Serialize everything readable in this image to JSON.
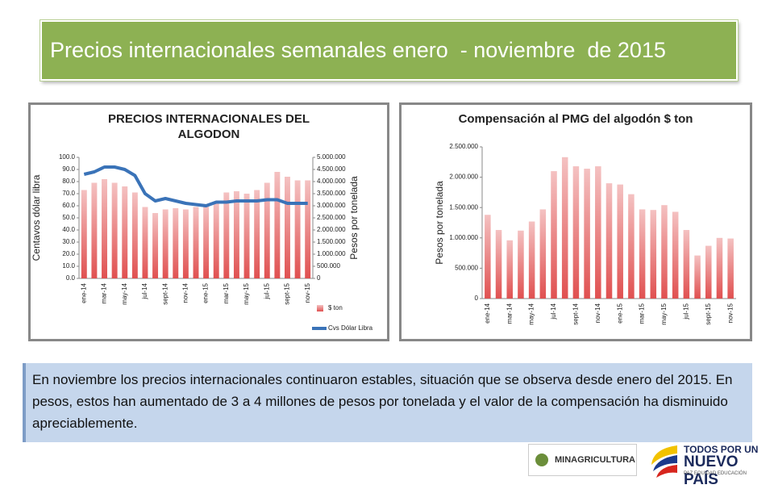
{
  "slide_title": "Precios internacionales semanales enero  - noviembre  de 2015",
  "chart_data": [
    {
      "type": "combo",
      "title": "PRECIOS INTERNACIONALES DEL ALGODON",
      "categories": [
        "ene-14",
        null,
        "mar-14",
        null,
        "may-14",
        null,
        "jul-14",
        null,
        "sept-14",
        null,
        "nov-14",
        null,
        "ene-15",
        null,
        "mar-15",
        null,
        "may-15",
        null,
        "jul-15",
        null,
        "sept-15",
        null,
        "nov-15"
      ],
      "y_label": "Centavos dólar libra",
      "y2_label": "Pesos por tonelada",
      "ylim": [
        0,
        100
      ],
      "yticks": [
        {
          "value": 0,
          "label": "0.0"
        },
        {
          "value": 10,
          "label": "10.0"
        },
        {
          "value": 20,
          "label": "20.0"
        },
        {
          "value": 30,
          "label": "30.0"
        },
        {
          "value": 40,
          "label": "40.0"
        },
        {
          "value": 50,
          "label": "50.0"
        },
        {
          "value": 60,
          "label": "60.0"
        },
        {
          "value": 70,
          "label": "70.0"
        },
        {
          "value": 80,
          "label": "80.0"
        },
        {
          "value": 90,
          "label": "90.0"
        },
        {
          "value": 100,
          "label": "100.0"
        }
      ],
      "y2lim": [
        0,
        5000000
      ],
      "y2ticks": [
        0,
        {
          "value": 500000,
          "label": "500.000"
        },
        {
          "value": 1000000,
          "label": "1.000.000"
        },
        {
          "value": 1500000,
          "label": "1.500.000"
        },
        {
          "value": 2000000,
          "label": "2.000.000"
        },
        {
          "value": 2500000,
          "label": "2.500.000"
        },
        {
          "value": 3000000,
          "label": "3.000.000"
        },
        {
          "value": 3500000,
          "label": "3.500.000"
        },
        {
          "value": 4000000,
          "label": "4.000.000"
        },
        {
          "value": 4500000,
          "label": "4.500.000"
        },
        {
          "value": 5000000,
          "label": "5.000.000"
        }
      ],
      "series": [
        {
          "name": "$ ton",
          "type": "bar",
          "axis": "y2",
          "color": "#e05050",
          "values": [
            3650000,
            3950000,
            4100000,
            3950000,
            3800000,
            3550000,
            2950000,
            2700000,
            2850000,
            2900000,
            2850000,
            2950000,
            3000000,
            3150000,
            3550000,
            3600000,
            3500000,
            3650000,
            3950000,
            4400000,
            4200000,
            4050000,
            4050000
          ]
        },
        {
          "name": "Cvs Dólar Libra",
          "type": "line",
          "axis": "y",
          "color": "#3a73b8",
          "values": [
            86,
            88,
            92,
            92,
            90,
            85,
            70,
            64,
            66,
            64,
            62,
            61,
            60,
            63,
            63,
            64,
            64,
            64,
            65,
            65,
            62,
            62,
            62
          ]
        }
      ]
    },
    {
      "type": "bar",
      "title": "Compensación al PMG del algodón $ ton",
      "categories": [
        "ene-14",
        null,
        "mar-14",
        null,
        "may-14",
        null,
        "jul-14",
        null,
        "sept-14",
        null,
        "nov-14",
        null,
        "ene-15",
        null,
        "mar-15",
        null,
        "may-15",
        null,
        "jul-15",
        null,
        "sept-15",
        null,
        "nov-15"
      ],
      "y_label": "Pesos por tonelada",
      "ylim": [
        0,
        2500000
      ],
      "yticks": [
        0,
        {
          "value": 500000,
          "label": "500.000"
        },
        {
          "value": 1000000,
          "label": "1.000.000"
        },
        {
          "value": 1500000,
          "label": "1.500.000"
        },
        {
          "value": 2000000,
          "label": "2.000.000"
        },
        {
          "value": 2500000,
          "label": "2.500.000"
        }
      ],
      "series": [
        {
          "name": "$ ton",
          "type": "bar",
          "axis": "y",
          "color": "#e05050",
          "values": [
            1380000,
            1130000,
            960000,
            1120000,
            1270000,
            1470000,
            2100000,
            2330000,
            2180000,
            2140000,
            2180000,
            1900000,
            1880000,
            1720000,
            1470000,
            1460000,
            1540000,
            1430000,
            1130000,
            710000,
            870000,
            1000000,
            990000
          ]
        }
      ]
    }
  ],
  "summary": "En noviembre los precios internacionales continuaron estables, situación que se observa desde enero del 2015. En pesos, estos han aumentado de 3 a 4 millones de pesos por tonelada y el valor de la compensación ha disminuido apreciablemente.",
  "logos": {
    "ministry": "MINAGRICULTURA",
    "slogan_top": "TODOS POR UN",
    "slogan_main": "NUEVO PAÍS",
    "slogan_sub": "PAZ  EQUIDAD  EDUCACIÓN"
  }
}
